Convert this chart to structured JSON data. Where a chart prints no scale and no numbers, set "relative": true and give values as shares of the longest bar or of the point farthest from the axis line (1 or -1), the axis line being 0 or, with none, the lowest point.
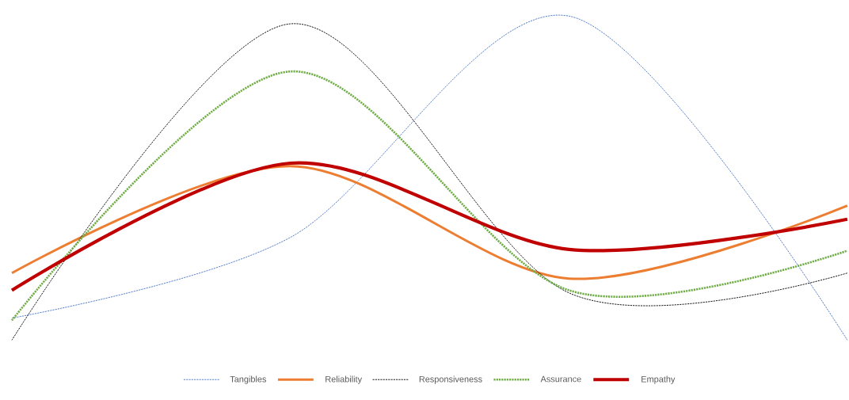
{
  "chart_data": {
    "type": "line",
    "relative": true,
    "categories": [
      null,
      null,
      null,
      null
    ],
    "legend": "bottom",
    "marker": "none",
    "series": [
      {
        "name": "Tangibles",
        "color": "#4472c4",
        "line_style": "dashed",
        "values": [
          0.068,
          0.317,
          1,
          0
        ]
      },
      {
        "name": "Reliability",
        "color": "#ed7d31",
        "line_style": "solid",
        "values": [
          0.207,
          0.537,
          0.19,
          0.415
        ]
      },
      {
        "name": "Responsiveness",
        "color": "#000000",
        "line_style": "dashed",
        "values": [
          0,
          0.976,
          0.146,
          0.207
        ]
      },
      {
        "name": "Assurance",
        "color": "#70ad47",
        "line_style": "dashed",
        "values": [
          0.061,
          0.829,
          0.154,
          0.276
        ]
      },
      {
        "name": "Empathy",
        "color": "#c00000",
        "line_style": "solid",
        "values": [
          0.154,
          0.546,
          0.28,
          0.373
        ]
      }
    ]
  }
}
